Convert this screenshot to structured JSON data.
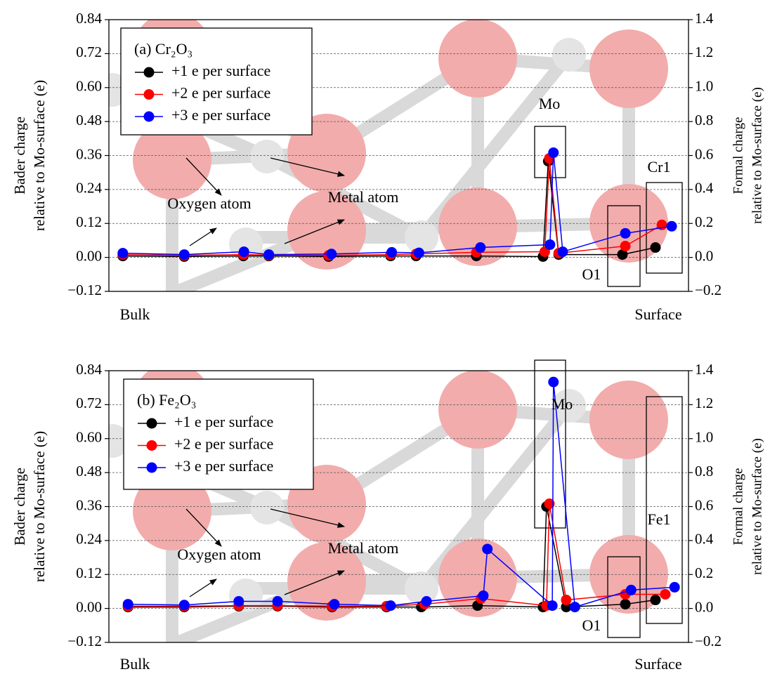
{
  "chart_data": [
    {
      "type": "line",
      "legend_title": "(a) Cr₂O₃",
      "ylabel": [
        "Bader charge",
        "relative to Mo-surface (e)"
      ],
      "y2label": [
        "Formal charge",
        "relative to Mo-surface (e)"
      ],
      "annotations": [
        "Mo",
        "Cr1",
        "O1",
        "Oxygen atom",
        "Metal atom",
        "Bulk",
        "Surface"
      ],
      "xlim": [
        0,
        100
      ],
      "ylim": [
        -0.12,
        0.84
      ],
      "yticks": [
        {
          "value": -0.12,
          "label": "−0.12"
        },
        {
          "value": 0,
          "label": "0.00"
        },
        0.12,
        0.24,
        0.36,
        0.48,
        {
          "value": 0.6,
          "label": "0.60"
        },
        0.72,
        0.84
      ],
      "y2lim": [
        -0.2,
        1.4
      ],
      "y2ticks": [
        {
          "value": -0.2,
          "label": "−0.2"
        },
        {
          "value": 0,
          "label": "0.0"
        },
        0.2,
        0.4,
        0.6,
        0.8,
        {
          "value": 1,
          "label": "1.0"
        },
        1.2,
        1.4
      ],
      "grid": true,
      "legend": "upper left",
      "series": [
        {
          "name": "+1 e per surface",
          "color": "#000000",
          "x": [
            2.4,
            13.0,
            23.2,
            27.6,
            37.9,
            48.6,
            53.0,
            63.4,
            74.9,
            75.8,
            77.6,
            88.6,
            94.3
          ],
          "values": [
            0.005,
            0.003,
            0.005,
            0.005,
            0.003,
            0.005,
            0.005,
            0.005,
            0.003,
            0.34,
            0.01,
            0.01,
            0.035
          ]
        },
        {
          "name": "+2 e per surface",
          "color": "#ff0000",
          "x": [
            2.4,
            13.0,
            23.2,
            27.6,
            37.9,
            48.6,
            53.0,
            63.4,
            75.2,
            76.0,
            77.6,
            89.1,
            95.4
          ],
          "values": [
            0.01,
            0.007,
            0.01,
            0.008,
            0.007,
            0.01,
            0.012,
            0.018,
            0.02,
            0.35,
            0.015,
            0.04,
            0.115
          ]
        },
        {
          "name": "+3 e per surface",
          "color": "#0000ff",
          "x": [
            2.4,
            13.0,
            23.3,
            27.6,
            38.4,
            48.8,
            53.5,
            64.1,
            76.1,
            76.7,
            78.3,
            89.1,
            97.1
          ],
          "values": [
            0.015,
            0.01,
            0.02,
            0.01,
            0.012,
            0.018,
            0.016,
            0.035,
            0.045,
            0.37,
            0.02,
            0.085,
            0.11
          ]
        }
      ]
    },
    {
      "type": "line",
      "legend_title": "(b) Fe₂O₃",
      "ylabel": [
        "Bader charge",
        "relative to Mo-surface (e)"
      ],
      "y2label": [
        "Formal charge",
        "relative to Mo-surface (e)"
      ],
      "annotations": [
        "Mo",
        "Fe1",
        "O1",
        "Oxygen atom",
        "Metal atom",
        "Bulk",
        "Surface"
      ],
      "xlim": [
        0,
        100
      ],
      "ylim": [
        -0.12,
        0.84
      ],
      "yticks": [
        {
          "value": -0.12,
          "label": "−0.12"
        },
        {
          "value": 0,
          "label": "0.00"
        },
        0.12,
        0.24,
        0.36,
        0.48,
        {
          "value": 0.6,
          "label": "0.60"
        },
        0.72,
        0.84
      ],
      "y2lim": [
        -0.2,
        1.4
      ],
      "y2ticks": [
        {
          "value": -0.2,
          "label": "−0.2"
        },
        {
          "value": 0,
          "label": "0.0"
        },
        0.2,
        0.4,
        0.6,
        0.8,
        {
          "value": 1,
          "label": "1.0"
        },
        1.2,
        1.4
      ],
      "grid": true,
      "legend": "upper left",
      "series": [
        {
          "name": "+1 e per surface",
          "color": "#000000",
          "x": [
            3.3,
            13.0,
            22.4,
            29.1,
            38.5,
            47.9,
            53.9,
            63.6,
            74.9,
            75.5,
            78.9,
            89.1,
            94.3
          ],
          "values": [
            0.005,
            0.005,
            0.008,
            0.008,
            0.005,
            0.005,
            0.005,
            0.01,
            0.005,
            0.36,
            0.005,
            0.015,
            0.03
          ]
        },
        {
          "name": "+2 e per surface",
          "color": "#ff0000",
          "x": [
            3.3,
            13.0,
            22.4,
            29.1,
            38.5,
            47.9,
            54.5,
            64.2,
            75.5,
            76.0,
            78.9,
            89.1,
            96.0
          ],
          "values": [
            0.008,
            0.008,
            0.01,
            0.01,
            0.008,
            0.008,
            0.015,
            0.035,
            0.01,
            0.37,
            0.03,
            0.05,
            0.05
          ]
        },
        {
          "name": "+3 e per surface",
          "color": "#0000ff",
          "x": [
            3.3,
            13.0,
            22.4,
            29.1,
            38.9,
            48.6,
            54.8,
            64.6,
            65.3,
            76.5,
            76.7,
            80.4,
            90.1,
            97.6
          ],
          "values": [
            0.015,
            0.012,
            0.025,
            0.025,
            0.015,
            0.01,
            0.025,
            0.045,
            0.21,
            0.01,
            0.8,
            0.005,
            0.065,
            0.075
          ]
        }
      ]
    }
  ]
}
